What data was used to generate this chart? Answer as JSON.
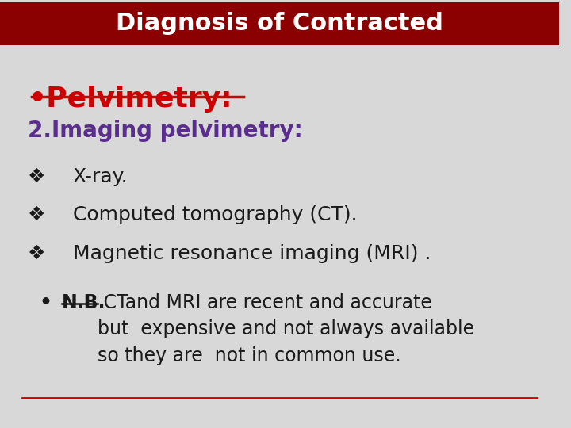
{
  "title": "Diagnosis of Contracted",
  "title_bg_color": "#8B0000",
  "title_text_color": "#FFFFFF",
  "bg_color": "#D8D8D8",
  "bullet_main": "•Pelvimetry:",
  "bullet_main_color": "#CC0000",
  "bullet_main_underline_color": "#CC0000",
  "subheading": "2.Imaging pelvimetry:",
  "subheading_color": "#5B2D8E",
  "items": [
    "X-ray.",
    "Computed tomography (CT).",
    "Magnetic resonance imaging (MRI) ."
  ],
  "items_color": "#1A1A1A",
  "nb_label": "N.B.",
  "nb_text": " CTand MRI are recent and accurate\nbut  expensive and not always available\nso they are  not in common use.",
  "nb_color": "#1A1A1A",
  "bottom_line_color": "#CC0000",
  "diamond_symbol": "❖"
}
